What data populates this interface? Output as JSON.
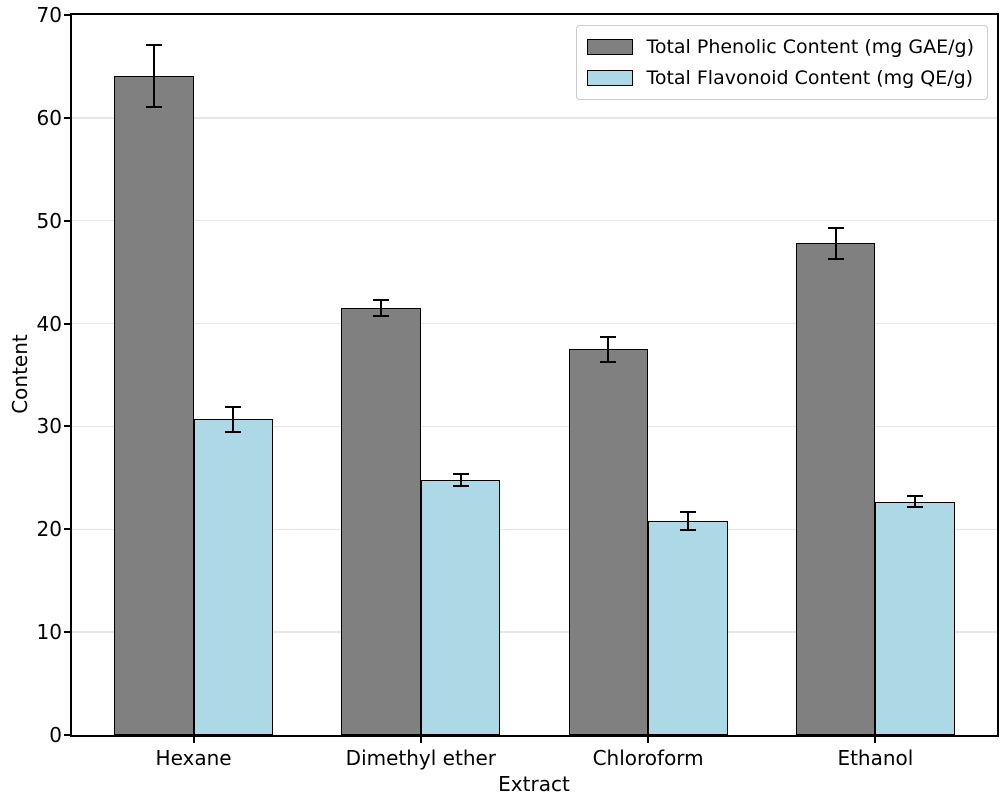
{
  "chart_data": {
    "type": "bar",
    "title": "",
    "xlabel": "Extract",
    "ylabel": "Content",
    "categories": [
      "Hexane",
      "Dimethyl ether",
      "Chloroform",
      "Ethanol"
    ],
    "series": [
      {
        "name": "Total Phenolic Content (mg GAE/g)",
        "color": "#808080",
        "values": [
          64.1,
          41.5,
          37.5,
          47.8
        ],
        "errors": [
          3.0,
          0.8,
          1.2,
          1.5
        ]
      },
      {
        "name": "Total Flavonoid Content (mg QE/g)",
        "color": "#add8e6",
        "values": [
          30.7,
          24.8,
          20.8,
          22.7
        ],
        "errors": [
          1.2,
          0.6,
          0.9,
          0.5
        ]
      }
    ],
    "ylim": [
      0,
      70
    ],
    "yticks": [
      0,
      10,
      20,
      30,
      40,
      50,
      60,
      70
    ],
    "grid": true,
    "grid_color": "#e6e6e6",
    "bar_edge_color": "#000000",
    "error_bar_color": "#000000",
    "legend_position": "upper right",
    "legend_border_color": "#cccccc"
  }
}
